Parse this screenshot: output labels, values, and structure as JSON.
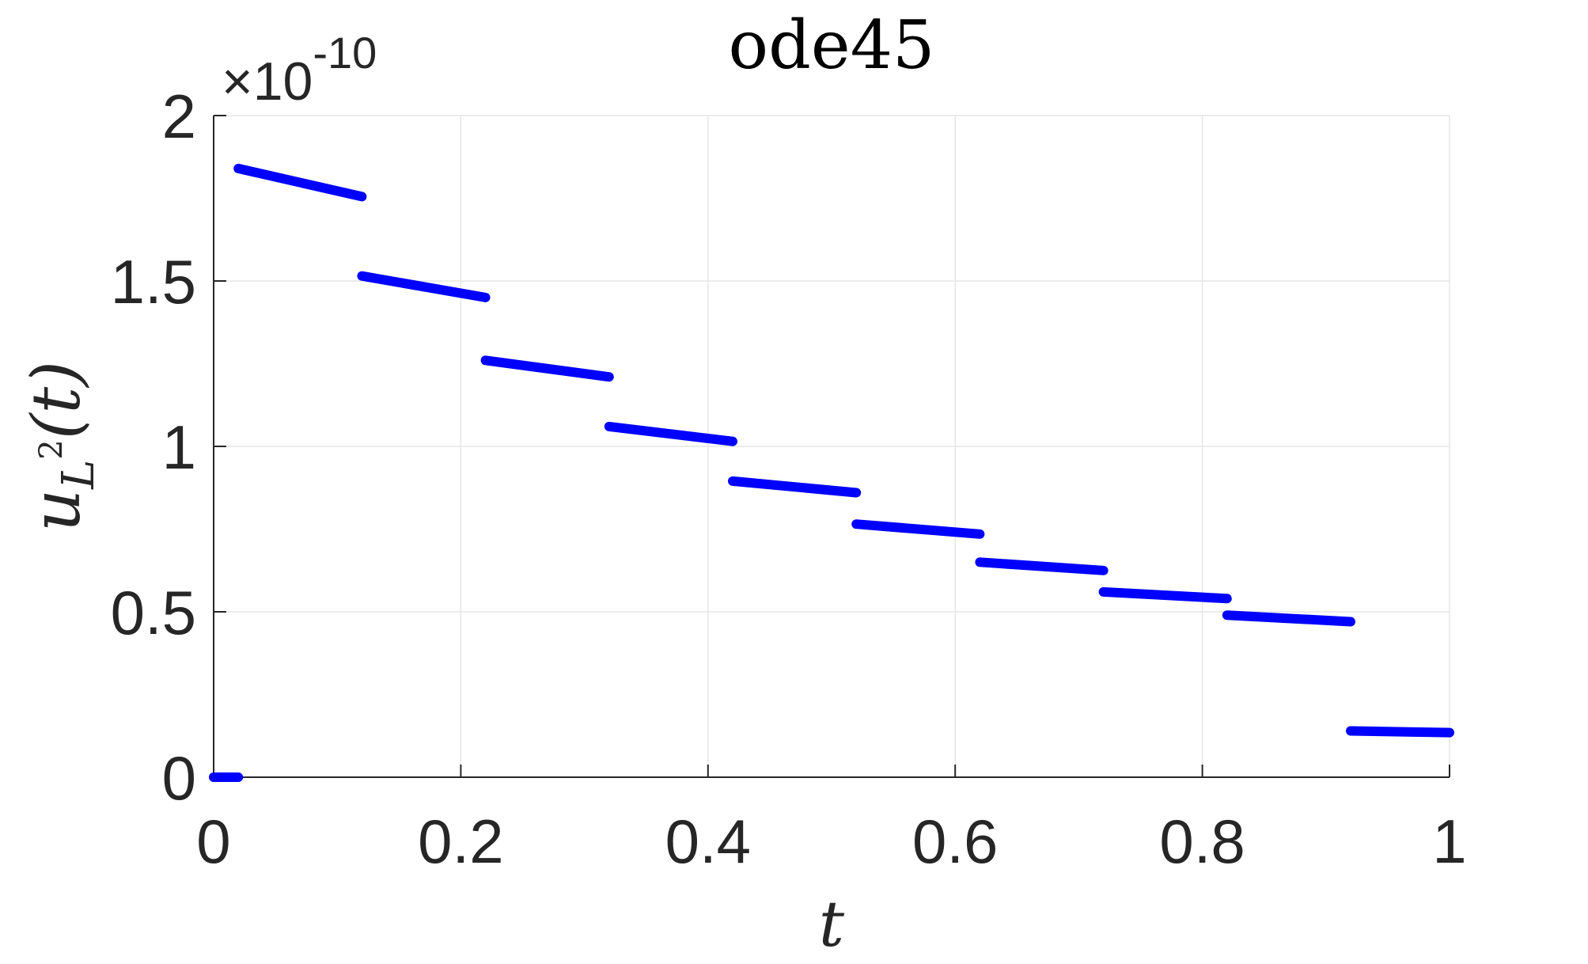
{
  "chart_data": {
    "type": "line",
    "title": "ode45",
    "xlabel": "t",
    "ylabel": {
      "base": "u",
      "sub": "L",
      "sup": "2",
      "arg": "(t)"
    },
    "y_exponent": {
      "prefix": "×10",
      "power": "-10"
    },
    "xlim": [
      0,
      1
    ],
    "ylim": [
      0,
      2
    ],
    "grid": true,
    "legend": "none",
    "x_ticks": [
      0,
      0.2,
      0.4,
      0.6,
      0.8,
      1
    ],
    "x_tick_labels": [
      "0",
      "0.2",
      "0.4",
      "0.6",
      "0.8",
      "1"
    ],
    "y_ticks": [
      0,
      0.5,
      1,
      1.5,
      2
    ],
    "y_tick_labels": [
      "0",
      "0.5",
      "1",
      "1.5",
      "2"
    ],
    "series": [
      {
        "color": "#0000ff",
        "segments": [
          {
            "x": [
              0.0,
              0.02
            ],
            "y": [
              0.0,
              0.0
            ]
          },
          {
            "x": [
              0.02,
              0.12
            ],
            "y": [
              1.84,
              1.755
            ]
          },
          {
            "x": [
              0.12,
              0.22
            ],
            "y": [
              1.515,
              1.45
            ]
          },
          {
            "x": [
              0.22,
              0.32
            ],
            "y": [
              1.26,
              1.21
            ]
          },
          {
            "x": [
              0.32,
              0.42
            ],
            "y": [
              1.06,
              1.015
            ]
          },
          {
            "x": [
              0.42,
              0.52
            ],
            "y": [
              0.895,
              0.86
            ]
          },
          {
            "x": [
              0.52,
              0.62
            ],
            "y": [
              0.765,
              0.735
            ]
          },
          {
            "x": [
              0.62,
              0.72
            ],
            "y": [
              0.65,
              0.625
            ]
          },
          {
            "x": [
              0.72,
              0.82
            ],
            "y": [
              0.56,
              0.54
            ]
          },
          {
            "x": [
              0.82,
              0.92
            ],
            "y": [
              0.49,
              0.47
            ]
          },
          {
            "x": [
              0.92,
              1.0
            ],
            "y": [
              0.14,
              0.135
            ]
          }
        ]
      }
    ]
  }
}
